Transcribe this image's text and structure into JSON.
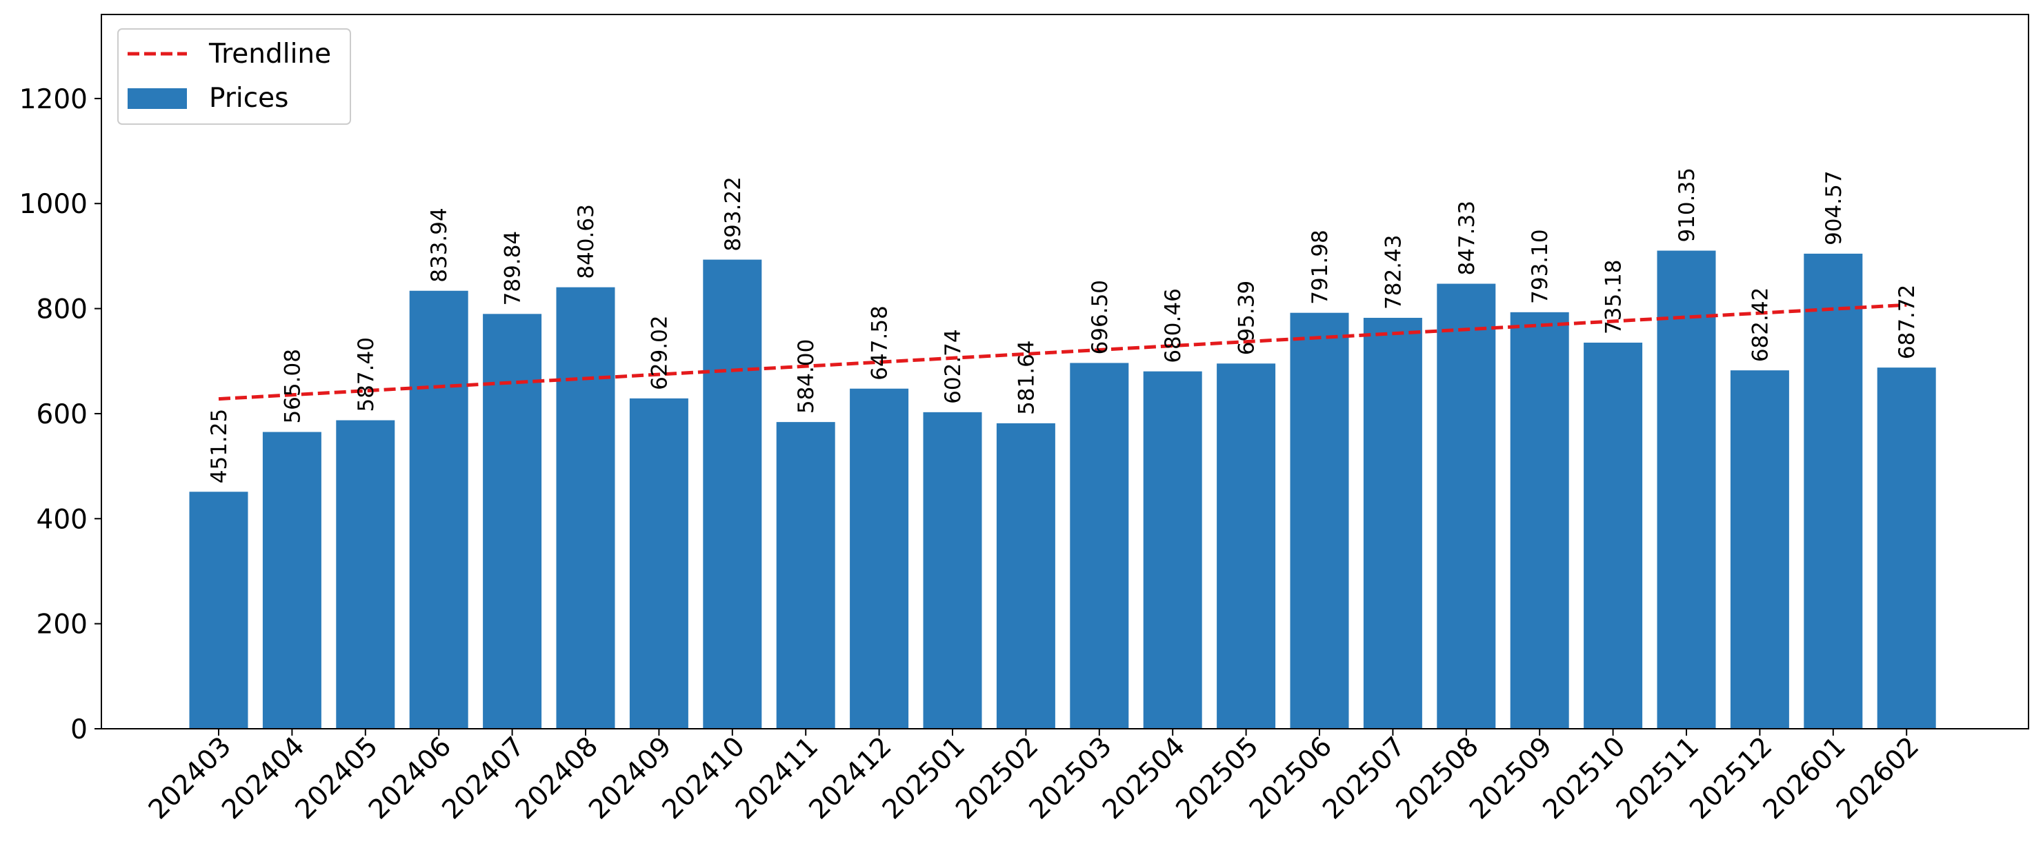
{
  "chart_data": {
    "type": "bar",
    "categories": [
      "202403",
      "202404",
      "202405",
      "202406",
      "202407",
      "202408",
      "202409",
      "202410",
      "202411",
      "202412",
      "202501",
      "202502",
      "202503",
      "202504",
      "202505",
      "202506",
      "202507",
      "202508",
      "202509",
      "202510",
      "202511",
      "202512",
      "202601",
      "202602"
    ],
    "series": [
      {
        "name": "Prices",
        "type": "bar",
        "color": "#2a7ab9",
        "values": [
          451.25,
          565.08,
          587.4,
          833.94,
          789.84,
          840.63,
          629.02,
          893.22,
          584.0,
          647.58,
          602.74,
          581.64,
          696.5,
          680.46,
          695.39,
          791.98,
          782.43,
          847.33,
          793.1,
          735.18,
          910.35,
          682.42,
          904.57,
          687.72
        ],
        "labels": [
          "451.25",
          "565.08",
          "587.40",
          "833.94",
          "789.84",
          "840.63",
          "629.02",
          "893.22",
          "584.00",
          "647.58",
          "602.74",
          "581.64",
          "696.50",
          "680.46",
          "695.39",
          "791.98",
          "782.43",
          "847.33",
          "793.10",
          "735.18",
          "910.35",
          "682.42",
          "904.57",
          "687.72"
        ]
      },
      {
        "name": "Trendline",
        "type": "line",
        "style": "dashed",
        "color": "#e41a1c",
        "start": 628,
        "end": 807
      }
    ],
    "title": "",
    "xlabel": "",
    "ylabel": "",
    "ylim": [
      0,
      1360
    ],
    "yticks": [
      "0",
      "200",
      "400",
      "600",
      "800",
      "1000",
      "1200"
    ],
    "grid": false,
    "legend": {
      "position": "top-left",
      "entries": [
        "Trendline",
        "Prices"
      ]
    }
  }
}
